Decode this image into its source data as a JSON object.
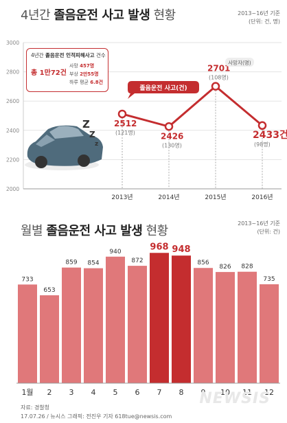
{
  "top": {
    "title_prefix": "4년간",
    "title_bold": "졸음운전 사고 발생",
    "title_suffix": "현황",
    "period": "2013~16년 기준",
    "unit": "(단위: 건, 명)",
    "series_label": "졸음운전 사고(건)",
    "deaths_label": "사망자(명)",
    "info": {
      "header_plain": "4년간",
      "header_bold": "졸음운전 인적피해사고",
      "header_suffix": "건수",
      "total": "총 1만72건",
      "d1_label": "사망",
      "d1_value": "457명",
      "d2_label": "부상",
      "d2_value": "2만55명",
      "d3_label": "하루 평균",
      "d3_value": "6.8건"
    }
  },
  "bottom": {
    "title_prefix": "월별",
    "title_bold": "졸음운전 사고 발생",
    "title_suffix": "현황",
    "period": "2013~16년 기준",
    "unit": "(단위: 건)"
  },
  "source": "자료: 경찰청",
  "credit": "17.07.26 / 뉴시스 그래픽: 전진우 기자 618tue@newsis.com",
  "watermark": "NEWSIS",
  "colors": {
    "accent": "#c42d2f",
    "bar": "#e0787a",
    "bar_highlight": "#c42d2f",
    "grid": "#e3e3e3"
  },
  "chart_data": [
    {
      "type": "line",
      "x": [
        "2013년",
        "2014년",
        "2015년",
        "2016년"
      ],
      "series": [
        {
          "name": "졸음운전 사고(건)",
          "values": [
            2512,
            2426,
            2701,
            2433
          ],
          "labels": [
            "2512",
            "2426",
            "2701",
            "2433건"
          ]
        },
        {
          "name": "사망자(명)",
          "values": [
            121,
            130,
            108,
            98
          ],
          "labels": [
            "(121명)",
            "(130명)",
            "(108명)",
            "(98명)"
          ]
        }
      ],
      "yticks": [
        2000,
        2200,
        2400,
        2600,
        2800,
        3000
      ],
      "ylim": [
        2000,
        3000
      ],
      "grid": true
    },
    {
      "type": "bar",
      "categories": [
        "1월",
        "2",
        "3",
        "4",
        "5",
        "6",
        "7",
        "8",
        "9",
        "10",
        "11",
        "12"
      ],
      "values": [
        733,
        653,
        859,
        854,
        940,
        872,
        968,
        948,
        856,
        826,
        828,
        735
      ],
      "highlight": [
        6,
        7
      ],
      "ylim": [
        0,
        1000
      ],
      "grid": false
    }
  ]
}
